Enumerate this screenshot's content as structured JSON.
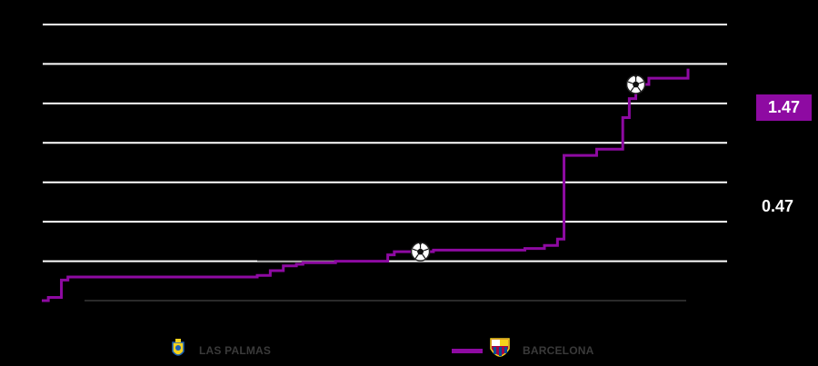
{
  "chart_data": {
    "type": "line",
    "series": [
      {
        "name": "BARCELONA",
        "color": "#8e0aa2",
        "x": [
          0,
          1,
          3,
          4,
          6,
          33,
          35,
          37,
          39,
          40,
          43,
          45,
          47,
          53,
          54,
          59,
          60,
          74,
          77,
          79,
          80,
          85,
          89,
          90,
          91,
          93,
          99
        ],
        "y": [
          0.0,
          0.02,
          0.13,
          0.15,
          0.15,
          0.16,
          0.19,
          0.22,
          0.23,
          0.24,
          0.24,
          0.25,
          0.25,
          0.29,
          0.31,
          0.31,
          0.32,
          0.33,
          0.35,
          0.39,
          0.92,
          0.96,
          1.16,
          1.28,
          1.37,
          1.41,
          1.47
        ],
        "goals_at_minute": [
          58,
          91
        ],
        "final_label": "1.47"
      },
      {
        "name": "LAS PALMAS",
        "color": "#000000",
        "final_label": "0.47"
      }
    ],
    "ylim": [
      0,
      1.75
    ],
    "gridlines": [
      0,
      0.25,
      0.5,
      0.75,
      1.0,
      1.25,
      1.5,
      1.75
    ],
    "grid": true,
    "legend_position": "bottom"
  },
  "labels": {
    "barca_final": "1.47",
    "lp_final": "0.47"
  },
  "legend": {
    "lp": "LAS PALMAS",
    "barca": "BARCELONA"
  },
  "colors": {
    "background": "#000000",
    "grid": "#ffffff",
    "barcelona": "#8e0aa2",
    "legend_text": "#3a3a3a"
  }
}
